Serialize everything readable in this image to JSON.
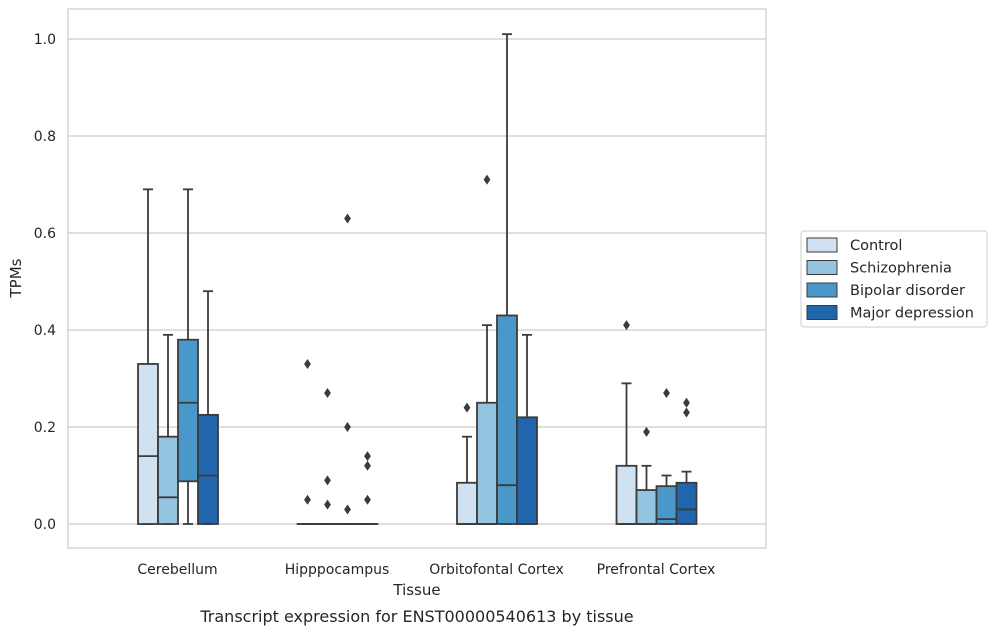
{
  "chart_data": {
    "type": "boxplot",
    "title": "",
    "caption": "Transcript expression for ENST00000540613 by tissue",
    "xlabel": "Tissue",
    "ylabel": "TPMs",
    "ylim": [
      -0.05,
      1.06
    ],
    "yticks": [
      0.0,
      0.2,
      0.4,
      0.6,
      0.8,
      1.0
    ],
    "ytick_labels": [
      "0.0",
      "0.2",
      "0.4",
      "0.6",
      "0.8",
      "1.0"
    ],
    "grid": "horizontal",
    "legend_position": "right",
    "categories": [
      "Cerebellum",
      "Hipppocampus",
      "Orbitofontal Cortex",
      "Prefrontal Cortex"
    ],
    "series": [
      {
        "name": "Control",
        "color": "#d0e1f2",
        "boxes": [
          {
            "whislo": 0.0,
            "q1": 0.0,
            "med": 0.14,
            "q3": 0.33,
            "whishi": 0.69,
            "fliers": []
          },
          {
            "whislo": 0.0,
            "q1": 0.0,
            "med": 0.0,
            "q3": 0.0,
            "whishi": 0.0,
            "fliers": [
              0.05,
              0.33
            ]
          },
          {
            "whislo": 0.0,
            "q1": 0.0,
            "med": 0.0,
            "q3": 0.085,
            "whishi": 0.18,
            "fliers": [
              0.24
            ]
          },
          {
            "whislo": 0.0,
            "q1": 0.0,
            "med": 0.0,
            "q3": 0.12,
            "whishi": 0.29,
            "fliers": [
              0.41
            ]
          }
        ]
      },
      {
        "name": "Schizophrenia",
        "color": "#94c4df",
        "boxes": [
          {
            "whislo": 0.0,
            "q1": 0.0,
            "med": 0.055,
            "q3": 0.18,
            "whishi": 0.39,
            "fliers": []
          },
          {
            "whislo": 0.0,
            "q1": 0.0,
            "med": 0.0,
            "q3": 0.0,
            "whishi": 0.0,
            "fliers": [
              0.04,
              0.09,
              0.27
            ]
          },
          {
            "whislo": 0.0,
            "q1": 0.0,
            "med": 0.0,
            "q3": 0.25,
            "whishi": 0.41,
            "fliers": [
              0.71
            ]
          },
          {
            "whislo": 0.0,
            "q1": 0.0,
            "med": 0.0,
            "q3": 0.07,
            "whishi": 0.12,
            "fliers": [
              0.19
            ]
          }
        ]
      },
      {
        "name": "Bipolar disorder",
        "color": "#4a98c9",
        "boxes": [
          {
            "whislo": 0.0,
            "q1": 0.088,
            "med": 0.25,
            "q3": 0.38,
            "whishi": 0.69,
            "fliers": []
          },
          {
            "whislo": 0.0,
            "q1": 0.0,
            "med": 0.0,
            "q3": 0.0,
            "whishi": 0.0,
            "fliers": [
              0.03,
              0.2,
              0.63
            ]
          },
          {
            "whislo": 0.0,
            "q1": 0.0,
            "med": 0.08,
            "q3": 0.43,
            "whishi": 1.01,
            "fliers": []
          },
          {
            "whislo": 0.0,
            "q1": 0.0,
            "med": 0.01,
            "q3": 0.078,
            "whishi": 0.1,
            "fliers": [
              0.27
            ]
          }
        ]
      },
      {
        "name": "Major depression",
        "color": "#2166ac",
        "boxes": [
          {
            "whislo": 0.0,
            "q1": 0.0,
            "med": 0.1,
            "q3": 0.225,
            "whishi": 0.48,
            "fliers": []
          },
          {
            "whislo": 0.0,
            "q1": 0.0,
            "med": 0.0,
            "q3": 0.0,
            "whishi": 0.0,
            "fliers": [
              0.05,
              0.12,
              0.14
            ]
          },
          {
            "whislo": 0.0,
            "q1": 0.0,
            "med": 0.0,
            "q3": 0.22,
            "whishi": 0.39,
            "fliers": []
          },
          {
            "whislo": 0.0,
            "q1": 0.0,
            "med": 0.03,
            "q3": 0.085,
            "whishi": 0.108,
            "fliers": [
              0.23,
              0.25
            ]
          }
        ]
      }
    ]
  }
}
